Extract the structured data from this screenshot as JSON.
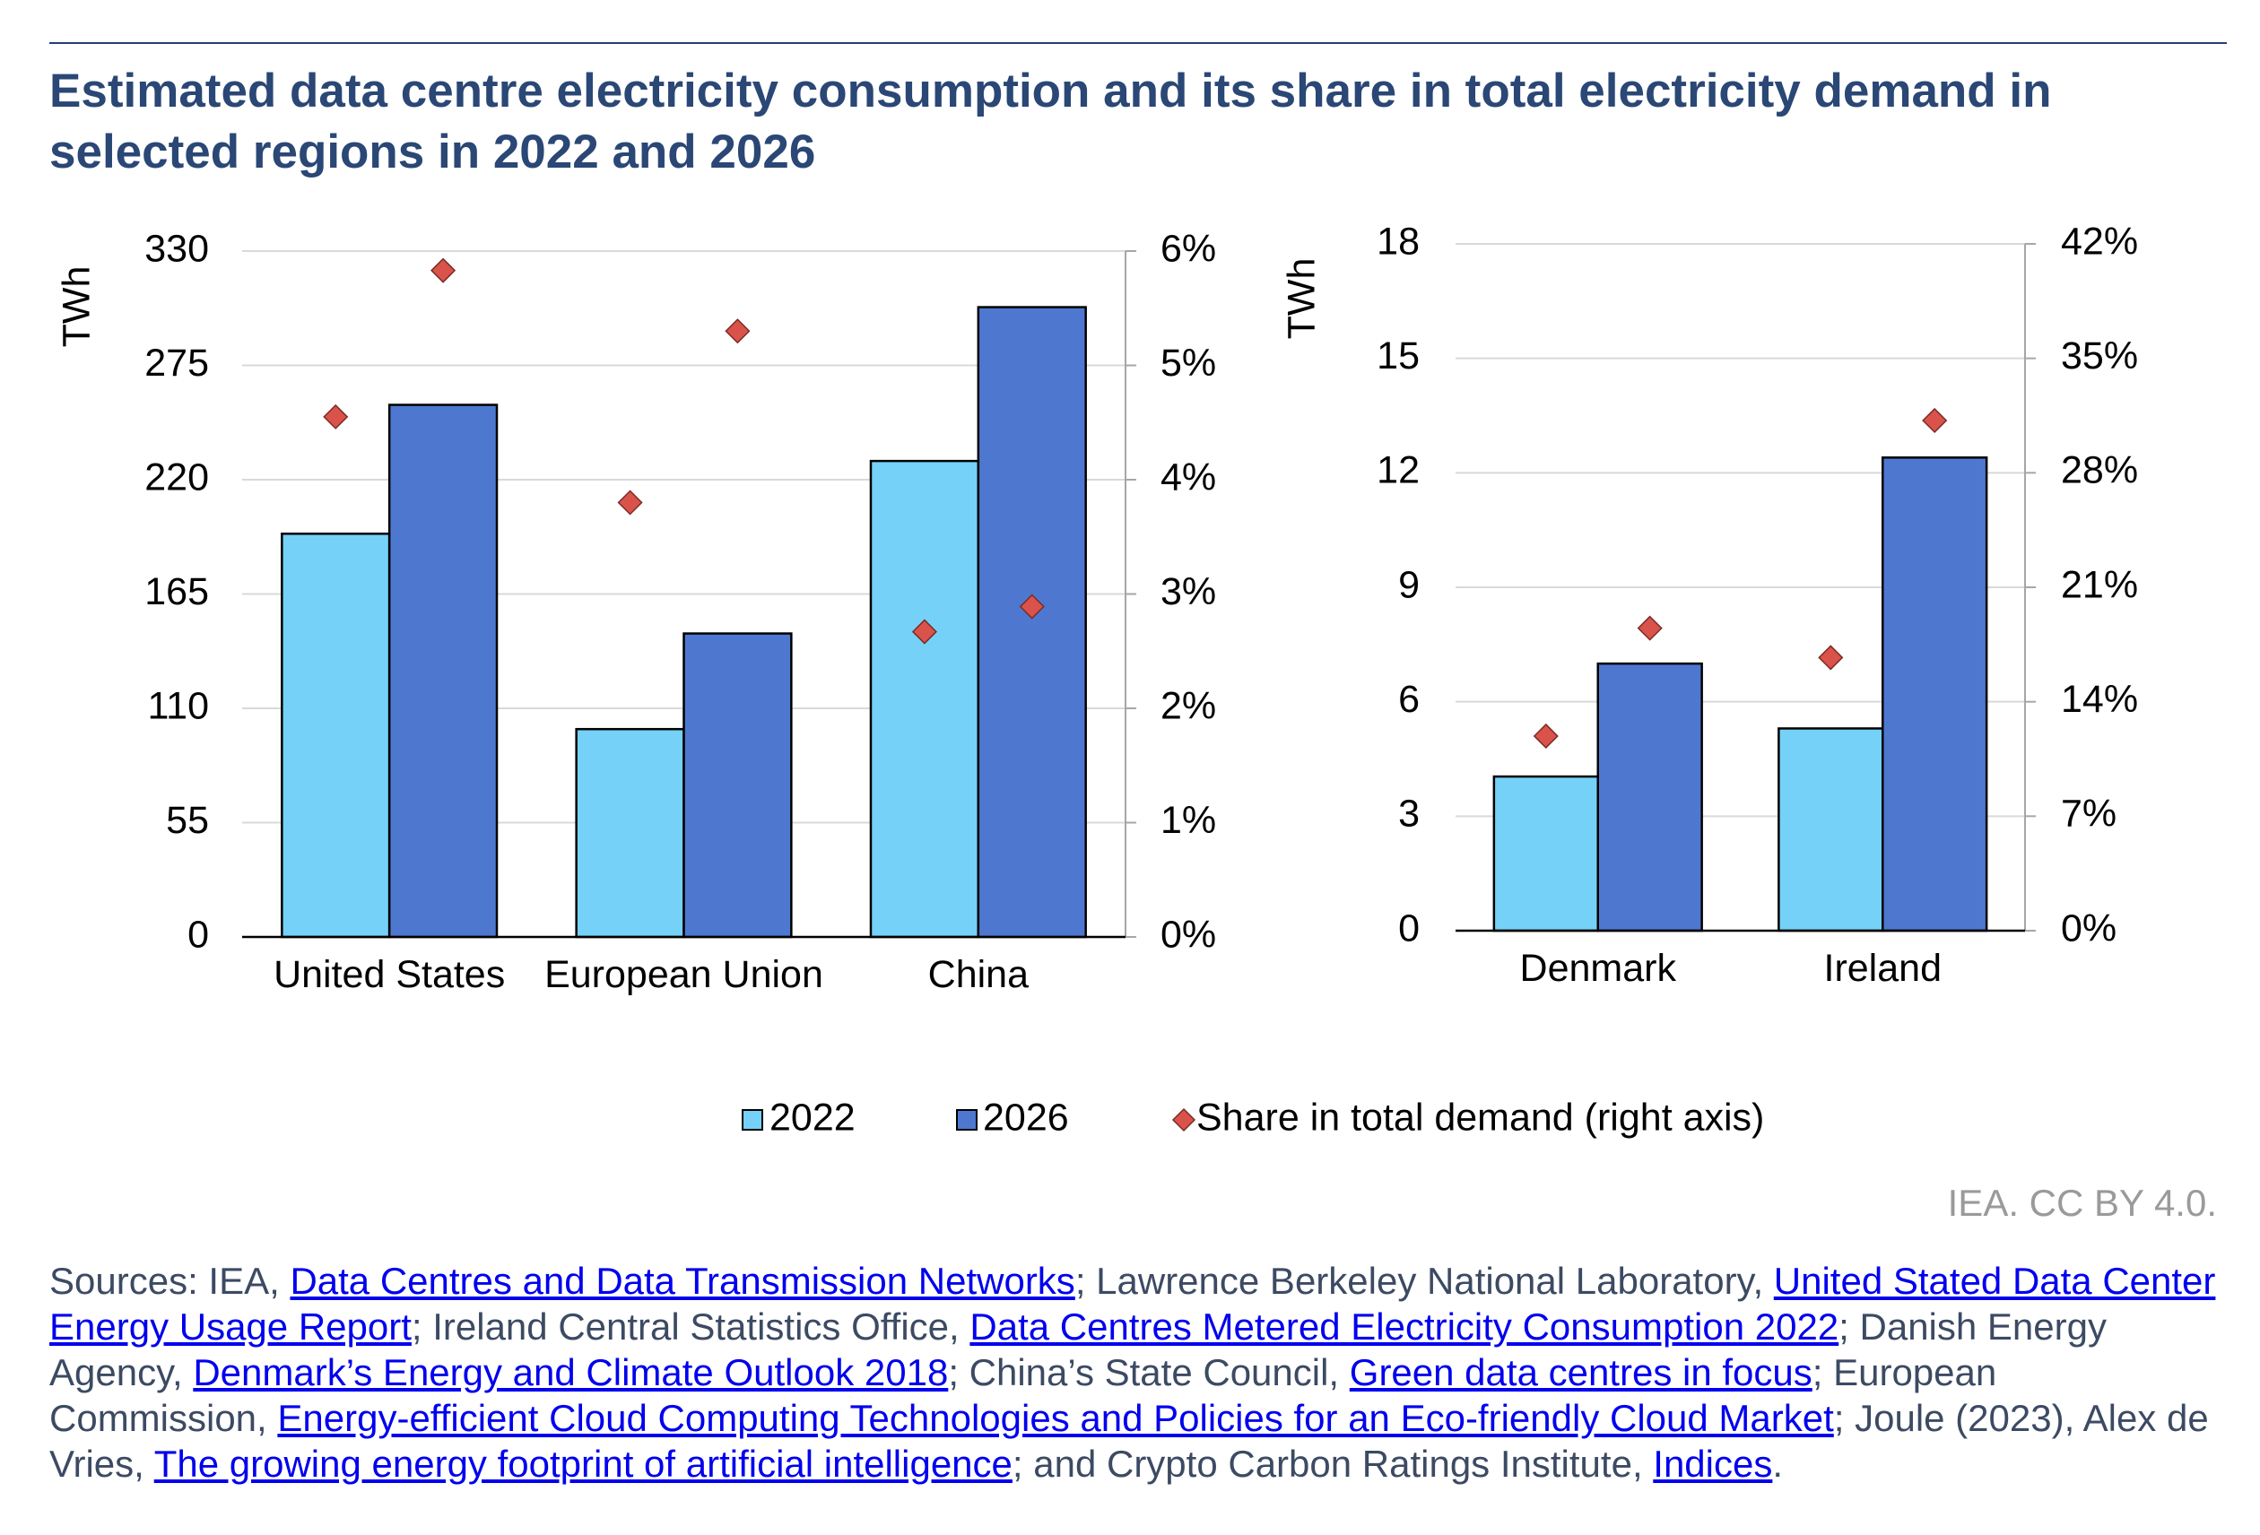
{
  "title": "Estimated data centre electricity consumption and its share in total electricity demand in selected regions in 2022 and 2026",
  "chart_data": [
    {
      "type": "bar",
      "ylabel": "TWh",
      "categories": [
        "United States",
        "European Union",
        "China"
      ],
      "series": [
        {
          "name": "2022",
          "color": "#75d1f7",
          "values": [
            194,
            100,
            229
          ]
        },
        {
          "name": "2026",
          "color": "#4e78cf",
          "values": [
            256,
            146,
            303
          ]
        },
        {
          "name": "Share in total demand (right axis)",
          "type": "scatter",
          "marker": "diamond",
          "color": "#d9534a",
          "axis": "y2",
          "values": [
            [
              4.55,
              5.83
            ],
            [
              3.8,
              5.3
            ],
            [
              2.67,
              2.89
            ]
          ]
        }
      ],
      "ylim": [
        0,
        330
      ],
      "yticks": [
        0,
        55,
        110,
        165,
        220,
        275,
        330
      ],
      "y2lim": [
        0,
        6
      ],
      "y2ticks": [
        {
          "value": 0,
          "label": "0%"
        },
        {
          "value": 1,
          "label": "1%"
        },
        {
          "value": 2,
          "label": "2%"
        },
        {
          "value": 3,
          "label": "3%"
        },
        {
          "value": 4,
          "label": "4%"
        },
        {
          "value": 5,
          "label": "5%"
        },
        {
          "value": 6,
          "label": "6%"
        }
      ],
      "grid": true
    },
    {
      "type": "bar",
      "ylabel": "TWh",
      "categories": [
        "Denmark",
        "Ireland"
      ],
      "series": [
        {
          "color": "#75d1f7",
          "values": [
            4.04,
            5.3
          ]
        },
        {
          "color": "#4e78cf",
          "values": [
            7.0,
            12.4
          ]
        },
        {
          "type": "scatter",
          "marker": "diamond",
          "color": "#d9534a",
          "axis": "y2",
          "values": [
            [
              11.9,
              18.5
            ],
            [
              16.7,
              31.2
            ]
          ]
        }
      ],
      "ylim": [
        0,
        18
      ],
      "yticks": [
        0,
        3,
        6,
        9,
        12,
        15,
        18
      ],
      "y2lim": [
        0,
        42
      ],
      "y2ticks": [
        {
          "value": 0,
          "label": "0%"
        },
        {
          "value": 7,
          "label": "7%"
        },
        {
          "value": 14,
          "label": "14%"
        },
        {
          "value": 21,
          "label": "21%"
        },
        {
          "value": 28,
          "label": "28%"
        },
        {
          "value": 35,
          "label": "35%"
        },
        {
          "value": 42,
          "label": "42%"
        }
      ],
      "grid": true
    }
  ],
  "credit": "IEA. CC BY 4.0.",
  "sources": [
    {
      "text": "Sources: IEA, "
    },
    {
      "link": "Data Centres and Data Transmission Networks"
    },
    {
      "text": "; Lawrence Berkeley National Laboratory, "
    },
    {
      "link": "United Stated Data Center Energy Usage Report"
    },
    {
      "text": "; Ireland Central Statistics Office, "
    },
    {
      "link": "Data Centres Metered Electricity Consumption 2022"
    },
    {
      "text": "; Danish Energy Agency, "
    },
    {
      "link": "Denmark’s Energy and Climate Outlook 2018"
    },
    {
      "text": "; China’s State Council, "
    },
    {
      "link": "Green data centres in focus"
    },
    {
      "text": "; European Commission, "
    },
    {
      "link": "Energy-efficient Cloud Computing Technologies and Policies for an Eco-friendly Cloud Market"
    },
    {
      "text": "; Joule (2023), Alex de Vries, "
    },
    {
      "link": "The growing energy footprint of artificial intelligence"
    },
    {
      "text": "; and Crypto Carbon Ratings Institute, "
    },
    {
      "link": "Indices"
    },
    {
      "text": "."
    }
  ]
}
